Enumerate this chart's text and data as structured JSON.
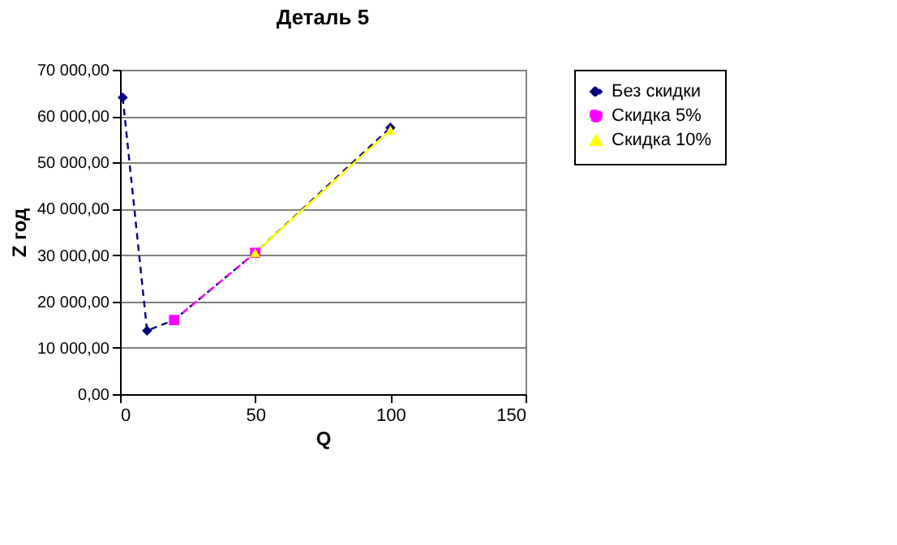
{
  "chart_data": {
    "type": "line",
    "title": "Деталь 5",
    "xlabel": "Q",
    "ylabel": "Z год",
    "xlim": [
      0,
      150
    ],
    "xticks": [
      0,
      50,
      100,
      150
    ],
    "ylim": [
      0,
      70000
    ],
    "yticks": [
      {
        "value": 0,
        "label": "0,00"
      },
      {
        "value": 10000,
        "label": "10 000,00"
      },
      {
        "value": 20000,
        "label": "20 000,00"
      },
      {
        "value": 30000,
        "label": "30 000,00"
      },
      {
        "value": 40000,
        "label": "40 000,00"
      },
      {
        "value": 50000,
        "label": "50 000,00"
      },
      {
        "value": 60000,
        "label": "60 000,00"
      },
      {
        "value": 70000,
        "label": "70 000,00"
      }
    ],
    "grid": "y",
    "legend": "right",
    "series": [
      {
        "name": "Без скидки",
        "color": "#000080",
        "marker": "diamond",
        "line_style": "dashed",
        "x": [
          1,
          10,
          20,
          50,
          100
        ],
        "values": [
          64000,
          13700,
          16000,
          30500,
          57500
        ]
      },
      {
        "name": "Скидка 5%",
        "color": "#ff00ff",
        "marker": "square",
        "line_style": "dashed",
        "x": [
          20,
          50
        ],
        "values": [
          16000,
          30500
        ]
      },
      {
        "name": "Скидка 10%",
        "color": "#ffff00",
        "marker": "triangle",
        "line_style": "solid",
        "x": [
          50,
          100
        ],
        "values": [
          30500,
          57000
        ]
      }
    ]
  }
}
